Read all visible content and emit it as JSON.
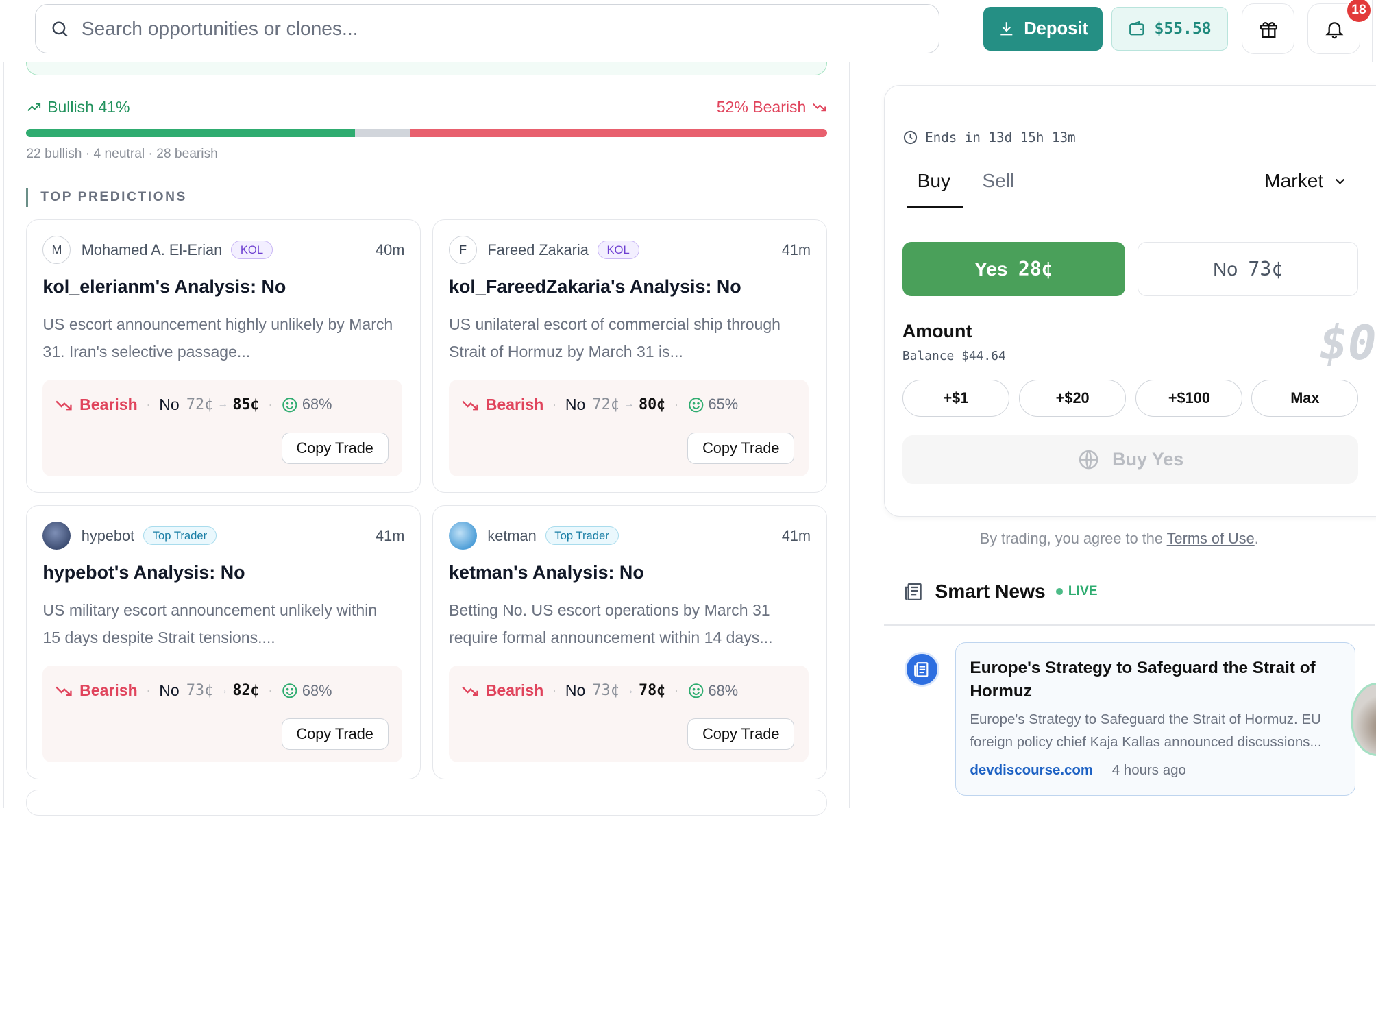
{
  "search": {
    "placeholder": "Search opportunities or clones..."
  },
  "header": {
    "deposit_label": "Deposit",
    "wallet_balance": "$55.58",
    "notification_count": "18"
  },
  "sentiment": {
    "bullish_label": "Bullish 41%",
    "bearish_label": "52% Bearish",
    "bullish_pct": 41,
    "neutral_pct": 7,
    "bearish_pct": 52,
    "counts_text": "22 bullish · 4 neutral · 28 bearish"
  },
  "predictions": {
    "section_title": "TOP PREDICTIONS",
    "cards": [
      {
        "initial": "M",
        "user": "Mohamed A. El-Erian",
        "tag": "KOL",
        "age": "40m",
        "title": "kol_elerianm's Analysis: No",
        "desc": "US escort announcement highly unlikely by March 31. Iran's selective passage...",
        "stance": "Bearish",
        "side": "No",
        "from": "72¢",
        "to": "85¢",
        "confidence": "68%",
        "copy_label": "Copy Trade"
      },
      {
        "initial": "F",
        "user": "Fareed Zakaria",
        "tag": "KOL",
        "age": "41m",
        "title": "kol_FareedZakaria's Analysis: No",
        "desc": "US unilateral escort of commercial ship through Strait of Hormuz by March 31 is...",
        "stance": "Bearish",
        "side": "No",
        "from": "72¢",
        "to": "80¢",
        "confidence": "65%",
        "copy_label": "Copy Trade"
      },
      {
        "initial": "",
        "user": "hypebot",
        "tag": "Top Trader",
        "age": "41m",
        "title": "hypebot's Analysis: No",
        "desc": "US military escort announcement unlikely within 15 days despite Strait tensions....",
        "stance": "Bearish",
        "side": "No",
        "from": "73¢",
        "to": "82¢",
        "confidence": "68%",
        "copy_label": "Copy Trade"
      },
      {
        "initial": "",
        "user": "ketman",
        "tag": "Top Trader",
        "age": "41m",
        "title": "ketman's Analysis: No",
        "desc": "Betting No. US escort operations by March 31 require formal announcement within 14 days...",
        "stance": "Bearish",
        "side": "No",
        "from": "73¢",
        "to": "78¢",
        "confidence": "68%",
        "copy_label": "Copy Trade"
      }
    ]
  },
  "trade": {
    "ends_text": "Ends in 13d 15h 13m",
    "tab_buy": "Buy",
    "tab_sell": "Sell",
    "order_type": "Market",
    "yes_label": "Yes",
    "yes_price": "28¢",
    "no_label": "No",
    "no_price": "73¢",
    "amount_label": "Amount",
    "balance_text": "Balance $44.64",
    "amount_value": "$0",
    "quick_amounts": [
      "+$1",
      "+$20",
      "+$100",
      "Max"
    ],
    "submit_label": "Buy Yes",
    "terms_prefix": "By trading, you agree to the ",
    "terms_link": "Terms of Use",
    "terms_suffix": "."
  },
  "news": {
    "title": "Smart News",
    "live_label": "LIVE",
    "item": {
      "headline": "Europe's Strategy to Safeguard the Strait of Hormuz",
      "summary": "Europe's Strategy to Safeguard the Strait of Hormuz. EU foreign policy chief Kaja Kallas announced discussions...",
      "source": "devdiscourse.com",
      "age": "4 hours ago"
    }
  },
  "colors": {
    "accent": "#258f84",
    "bullish": "#22925d",
    "bearish": "#e0445c",
    "yes": "#4aa05a"
  }
}
